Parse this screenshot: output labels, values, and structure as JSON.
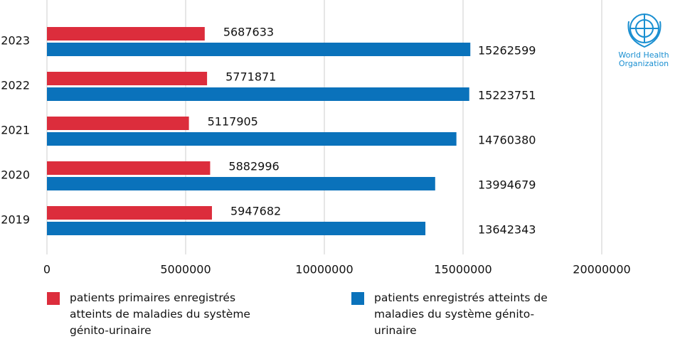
{
  "chart_data": {
    "type": "hbar",
    "categories": [
      "2023",
      "2022",
      "2021",
      "2020",
      "2019"
    ],
    "series": [
      {
        "name": "patients primaires enregistrés atteints de maladies du système génito-urinaire",
        "color": "#dc2d3c",
        "values": [
          5687633,
          5771871,
          5117905,
          5882996,
          5947682
        ]
      },
      {
        "name": "patients enregistrés atteints de maladies du système génito-urinaire",
        "color": "#0a72bb",
        "values": [
          15262599,
          15223751,
          14760380,
          13994679,
          13642343
        ]
      }
    ],
    "xlim": [
      0,
      20000000
    ],
    "xticks": [
      0,
      5000000,
      10000000,
      15000000,
      20000000
    ],
    "grid": true
  },
  "logo": {
    "line1": "World Health",
    "line2": "Organization"
  }
}
